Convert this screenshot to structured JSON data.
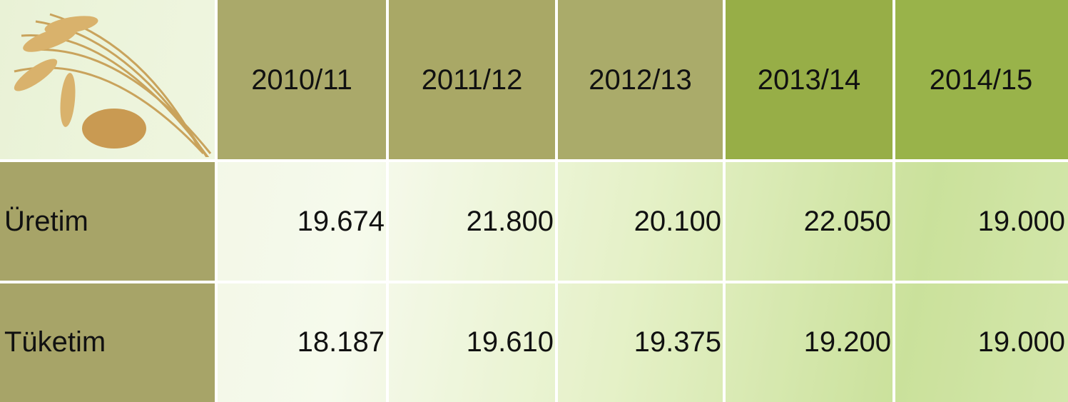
{
  "table": {
    "header": [
      "2010/11",
      "2011/12",
      "2012/13",
      "2013/14",
      "2014/15"
    ],
    "rows": [
      {
        "label": "Üretim",
        "values": [
          "19.674",
          "21.800",
          "20.100",
          "22.050",
          "19.000"
        ]
      },
      {
        "label": "Tüketim",
        "values": [
          "18.187",
          "19.610",
          "19.375",
          "19.200",
          "19.000"
        ]
      }
    ]
  }
}
